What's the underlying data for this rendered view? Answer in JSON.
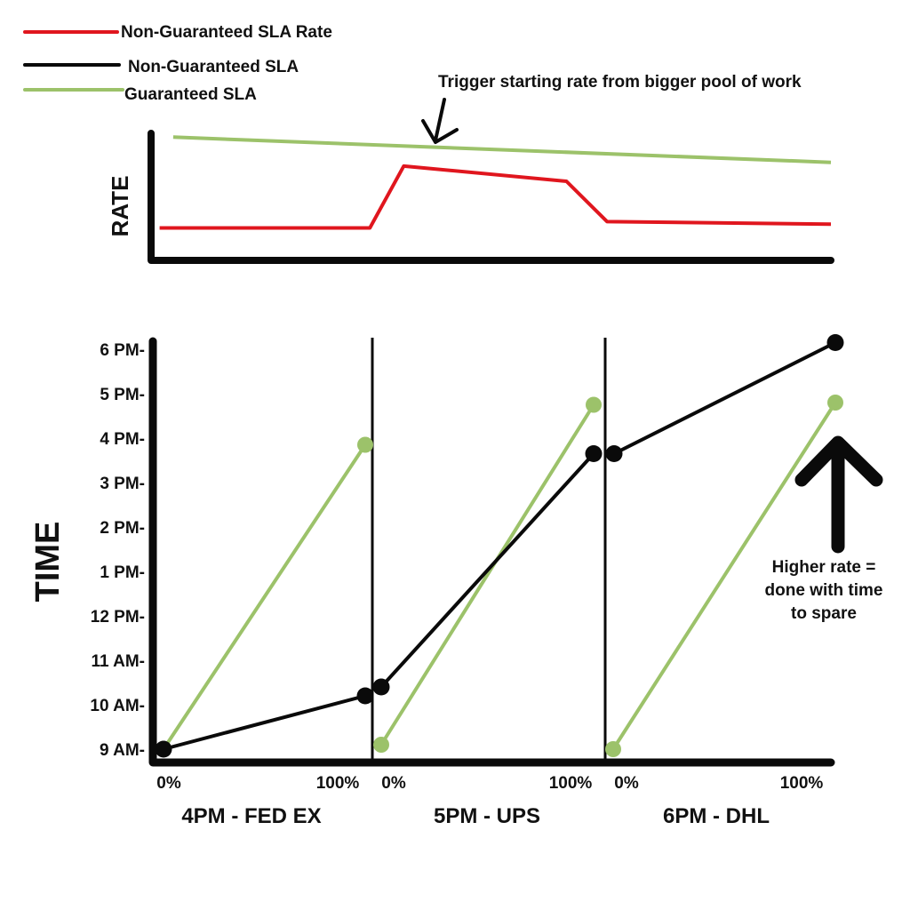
{
  "colors": {
    "red": "#e0161e",
    "black": "#0a0a0a",
    "green": "#9cc26a"
  },
  "legend": {
    "items": [
      {
        "key": "non_guaranteed_rate",
        "label": "Non-Guaranteed SLA Rate",
        "color": "#e0161e"
      },
      {
        "key": "non_guaranteed_sla",
        "label": "Non-Guaranteed SLA",
        "color": "#0a0a0a"
      },
      {
        "key": "guaranteed_sla",
        "label": "Guaranteed SLA",
        "color": "#9cc26a"
      }
    ]
  },
  "annotations": {
    "trigger": "Trigger starting rate from bigger pool of work",
    "higher_rate": [
      "Higher rate =",
      "done with time",
      "to spare"
    ]
  },
  "chart_data": [
    {
      "type": "line",
      "ylabel": "RATE",
      "xlabel": "",
      "x_range": [
        0,
        100
      ],
      "ylim": [
        0,
        100
      ],
      "series": [
        {
          "name": "Guaranteed SLA",
          "color": "#9cc26a",
          "x": [
            3,
            100
          ],
          "y": [
            97,
            77
          ]
        },
        {
          "name": "Non-Guaranteed SLA Rate",
          "color": "#e0161e",
          "x": [
            1,
            32,
            37,
            61,
            67,
            100
          ],
          "y": [
            25,
            25,
            74,
            62,
            30,
            28
          ]
        }
      ]
    },
    {
      "type": "line",
      "ylabel": "TIME",
      "yticks": [
        "9 AM-",
        "10 AM-",
        "11 AM-",
        "12 PM-",
        "1 PM-",
        "2 PM-",
        "3 PM-",
        "4 PM-",
        "5 PM-",
        "6 PM-"
      ],
      "ylim": [
        9,
        18
      ],
      "panels": [
        {
          "title": "4PM - FED EX",
          "xticks": [
            "0%",
            "100%"
          ],
          "series": [
            {
              "name": "Guaranteed SLA",
              "color": "#9cc26a",
              "x": [
                0,
                100
              ],
              "y": [
                9.0,
                15.85
              ]
            },
            {
              "name": "Non-Guaranteed SLA",
              "color": "#0a0a0a",
              "x": [
                0,
                100
              ],
              "y": [
                9.0,
                10.2
              ]
            }
          ]
        },
        {
          "title": "5PM - UPS",
          "xticks": [
            "0%",
            "100%"
          ],
          "series": [
            {
              "name": "Guaranteed SLA",
              "color": "#9cc26a",
              "x": [
                0,
                100
              ],
              "y": [
                9.1,
                16.75
              ]
            },
            {
              "name": "Non-Guaranteed SLA",
              "color": "#0a0a0a",
              "x": [
                0,
                100
              ],
              "y": [
                10.4,
                15.65
              ]
            }
          ]
        },
        {
          "title": "6PM - DHL",
          "xticks": [
            "0%",
            "100%"
          ],
          "series": [
            {
              "name": "Guaranteed SLA",
              "color": "#9cc26a",
              "x": [
                0,
                100
              ],
              "y": [
                9.0,
                16.8
              ]
            },
            {
              "name": "Non-Guaranteed SLA",
              "color": "#0a0a0a",
              "x": [
                0,
                100
              ],
              "y": [
                15.65,
                18.15
              ]
            }
          ]
        }
      ]
    }
  ]
}
